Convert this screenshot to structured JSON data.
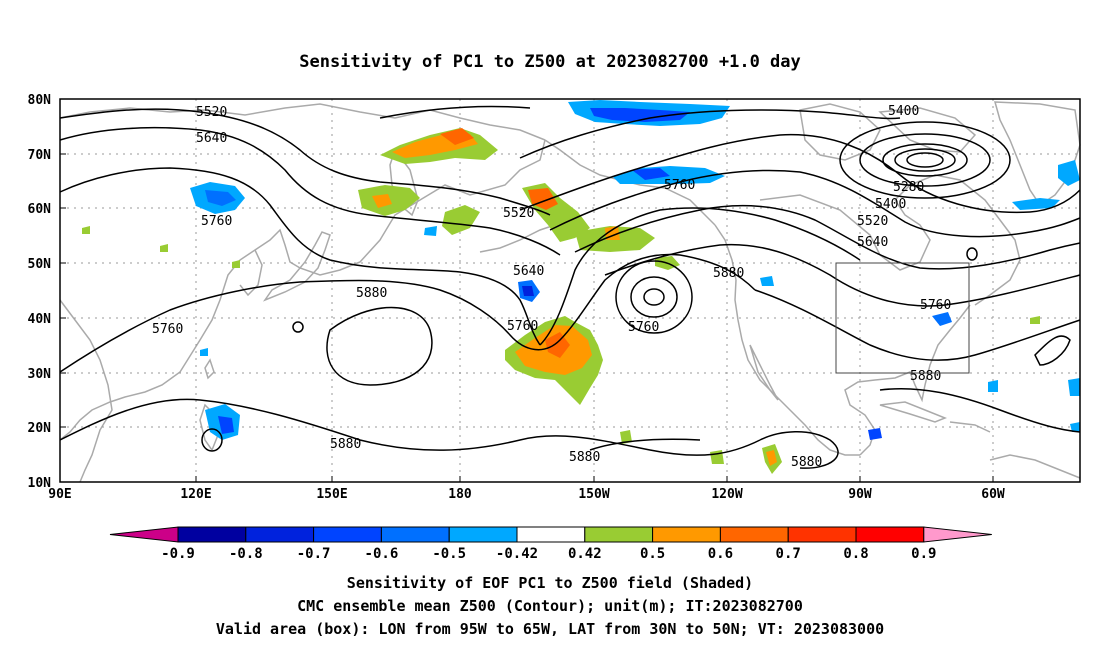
{
  "title": "Sensitivity of PC1 to Z500 at 2023082700 +1.0 day",
  "lat_labels": [
    "80N",
    "70N",
    "60N",
    "50N",
    "40N",
    "30N",
    "20N",
    "10N"
  ],
  "lon_labels": [
    "90E",
    "120E",
    "150E",
    "180",
    "150W",
    "120W",
    "90W",
    "60W"
  ],
  "contour_labels": {
    "c5520_a": "5520",
    "c5640_a": "5640",
    "c5760_a": "5760",
    "c5760_b": "5760",
    "c5520_b": "5520",
    "c5640_b": "5640",
    "c5880_a": "5880",
    "c5760_c": "5760",
    "c5760_d": "5760",
    "c5760_e": "5760",
    "c5880_b": "5880",
    "c5400_a": "5400",
    "c5280": "5280",
    "c5400_b": "5400",
    "c5520_c": "5520",
    "c5640_c": "5640",
    "c5760_f": "5760",
    "c5880_c": "5880",
    "c5880_d": "5880",
    "c5880_e": "5880",
    "c5880_f": "5880",
    "c5760_g": "5760"
  },
  "colorbar": {
    "labels": [
      "-0.9",
      "-0.8",
      "-0.7",
      "-0.6",
      "-0.5",
      "-0.42",
      "0.42",
      "0.5",
      "0.6",
      "0.7",
      "0.8",
      "0.9"
    ],
    "colors": [
      "#0000a0",
      "#0022dd",
      "#0044ff",
      "#0070ff",
      "#00a8ff",
      "#ffffff",
      "#99cc33",
      "#ff9900",
      "#ff6600",
      "#ff3300",
      "#ff0000"
    ],
    "low_end_color": "#cc0088",
    "high_end_color": "#ff99cc"
  },
  "caption": {
    "line1": "Sensitivity of EOF PC1 to Z500 field (Shaded)",
    "line2": "CMC ensemble mean Z500 (Contour); unit(m); IT:2023082700",
    "line3": "Valid area (box): LON from 95W to 65W, LAT from 30N to 50N; VT: 2023083000"
  }
}
